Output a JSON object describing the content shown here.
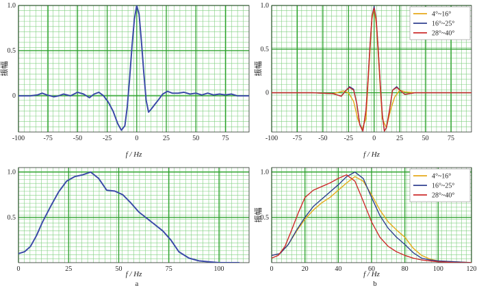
{
  "chart_data": [
    {
      "id": "a-top",
      "type": "line",
      "xlabel": "f / Hz",
      "ylabel": "振幅",
      "xlim": [
        -100,
        95
      ],
      "ylim": [
        -0.4,
        1.0
      ],
      "xticks": [
        -100,
        -75,
        -50,
        -25,
        0,
        25,
        50,
        75
      ],
      "yticks": [
        0,
        0.5,
        1.0
      ],
      "ytick_labels": [
        "0",
        "0.5",
        "1.0"
      ],
      "grid": true,
      "series": [
        {
          "color": "#3b4aa8",
          "x": [
            -100,
            -90,
            -84,
            -80,
            -76,
            -70,
            -66,
            -62,
            -56,
            -50,
            -45,
            -40,
            -36,
            -32,
            -28,
            -24,
            -20,
            -16,
            -13,
            -10,
            -8,
            -6,
            -4,
            -2,
            0,
            2,
            4,
            6,
            8,
            10,
            12,
            15,
            18,
            22,
            26,
            30,
            35,
            40,
            45,
            50,
            55,
            60,
            65,
            70,
            75,
            80,
            85,
            90,
            95
          ],
          "y": [
            0,
            0,
            0.01,
            0.03,
            0.01,
            -0.01,
            0,
            0.02,
            0,
            0.04,
            0.02,
            -0.02,
            0.02,
            0.04,
            0,
            -0.07,
            -0.17,
            -0.31,
            -0.38,
            -0.33,
            -0.12,
            0.2,
            0.55,
            0.85,
            1.0,
            0.9,
            0.6,
            0.25,
            -0.05,
            -0.18,
            -0.15,
            -0.1,
            -0.05,
            0.02,
            0.05,
            0.03,
            0.03,
            0.04,
            0.02,
            0.03,
            0.01,
            0.03,
            0.01,
            0.02,
            0.01,
            0.02,
            0,
            0,
            0
          ]
        }
      ]
    },
    {
      "id": "a-bottom",
      "type": "line",
      "xlabel": "f / Hz",
      "ylabel": "",
      "xlim": [
        0,
        115
      ],
      "ylim": [
        0,
        1.05
      ],
      "xticks": [
        0,
        25,
        50,
        75,
        100
      ],
      "yticks": [
        0.5,
        1.0
      ],
      "ytick_labels": [
        "0.5",
        "1.0"
      ],
      "grid": true,
      "series": [
        {
          "color": "#3b4aa8",
          "x": [
            0,
            3,
            6,
            9,
            12,
            16,
            20,
            24,
            28,
            32,
            36,
            40,
            44,
            48,
            52,
            56,
            60,
            64,
            68,
            72,
            76,
            80,
            85,
            90,
            95,
            100,
            105,
            110
          ],
          "y": [
            0.1,
            0.12,
            0.18,
            0.3,
            0.45,
            0.62,
            0.78,
            0.9,
            0.95,
            0.97,
            1.0,
            0.93,
            0.8,
            0.79,
            0.75,
            0.66,
            0.56,
            0.49,
            0.42,
            0.35,
            0.25,
            0.12,
            0.05,
            0.02,
            0.01,
            0.0,
            0.0,
            0.0
          ]
        }
      ]
    },
    {
      "id": "b-top",
      "type": "line",
      "xlabel": "f / Hz",
      "ylabel": "振幅",
      "xlim": [
        -100,
        95
      ],
      "ylim": [
        -0.45,
        1.0
      ],
      "xticks": [
        -100,
        -75,
        -50,
        -25,
        0,
        25,
        50,
        75
      ],
      "yticks": [
        0,
        0.5,
        1.0
      ],
      "ytick_labels": [
        "0",
        "0.5",
        "1.0"
      ],
      "grid": true,
      "legend": {
        "placement": "top-right"
      },
      "series": [
        {
          "name": "4°~16°",
          "color": "#e6a817",
          "x": [
            -100,
            -60,
            -40,
            -30,
            -25,
            -20,
            -16,
            -12,
            -8,
            -6,
            -4,
            -2,
            0,
            2,
            4,
            6,
            8,
            12,
            16,
            20,
            25,
            30,
            40,
            60,
            95
          ],
          "y": [
            0,
            0,
            -0.01,
            0.02,
            0,
            -0.1,
            -0.3,
            -0.42,
            -0.3,
            0.1,
            0.5,
            0.85,
            0.97,
            0.8,
            0.45,
            0.05,
            -0.3,
            -0.4,
            -0.2,
            -0.05,
            0.03,
            0.01,
            0,
            0,
            0
          ]
        },
        {
          "name": "16°~25°",
          "color": "#2f3f8f",
          "x": [
            -100,
            -60,
            -40,
            -32,
            -28,
            -24,
            -20,
            -17,
            -14,
            -11,
            -8,
            -6,
            -4,
            -2,
            0,
            2,
            4,
            6,
            8,
            10,
            12,
            15,
            18,
            22,
            26,
            30,
            40,
            60,
            95
          ],
          "y": [
            0,
            0,
            -0.01,
            -0.04,
            0.02,
            0.07,
            0.04,
            -0.12,
            -0.36,
            -0.44,
            -0.2,
            0.15,
            0.55,
            0.88,
            0.99,
            0.85,
            0.5,
            0.1,
            -0.25,
            -0.44,
            -0.4,
            -0.2,
            0.03,
            0.07,
            0.02,
            -0.02,
            0,
            0,
            0
          ]
        },
        {
          "name": "28°~40°",
          "color": "#cc2a2a",
          "x": [
            -100,
            -60,
            -40,
            -32,
            -28,
            -24,
            -20,
            -17,
            -14,
            -11,
            -8,
            -6,
            -4,
            -2,
            0,
            2,
            4,
            6,
            8,
            10,
            12,
            15,
            18,
            22,
            26,
            30,
            40,
            60,
            95
          ],
          "y": [
            0,
            0,
            -0.01,
            -0.04,
            0.02,
            0.06,
            0.03,
            -0.12,
            -0.37,
            -0.44,
            -0.2,
            0.15,
            0.55,
            0.88,
            0.97,
            0.85,
            0.5,
            0.1,
            -0.25,
            -0.44,
            -0.4,
            -0.2,
            0.03,
            0.06,
            0.02,
            -0.02,
            0,
            0,
            0
          ]
        }
      ]
    },
    {
      "id": "b-bottom",
      "type": "line",
      "xlabel": "f / Hz",
      "ylabel": "振幅",
      "xlim": [
        0,
        120
      ],
      "ylim": [
        0,
        1.05
      ],
      "xticks": [
        0,
        20,
        40,
        60,
        80,
        100,
        120
      ],
      "yticks": [
        0.5,
        1.0
      ],
      "ytick_labels": [
        "0.5",
        "1.0"
      ],
      "grid": true,
      "legend": {
        "placement": "top-right"
      },
      "series": [
        {
          "name": "4°~16°",
          "color": "#e6a817",
          "x": [
            0,
            5,
            10,
            15,
            20,
            25,
            30,
            35,
            40,
            45,
            50,
            55,
            60,
            65,
            70,
            75,
            80,
            85,
            90,
            95,
            100,
            110,
            120
          ],
          "y": [
            0.08,
            0.1,
            0.2,
            0.35,
            0.48,
            0.58,
            0.66,
            0.72,
            0.8,
            0.88,
            0.95,
            0.9,
            0.75,
            0.58,
            0.45,
            0.36,
            0.28,
            0.16,
            0.08,
            0.04,
            0.02,
            0.01,
            0
          ]
        },
        {
          "name": "16°~25°",
          "color": "#2f3f8f",
          "x": [
            0,
            5,
            10,
            15,
            20,
            25,
            30,
            35,
            40,
            45,
            50,
            55,
            60,
            65,
            70,
            75,
            80,
            85,
            90,
            95,
            100,
            110,
            120
          ],
          "y": [
            0.08,
            0.1,
            0.2,
            0.36,
            0.5,
            0.62,
            0.7,
            0.78,
            0.86,
            0.95,
            1.0,
            0.93,
            0.72,
            0.52,
            0.38,
            0.28,
            0.2,
            0.11,
            0.05,
            0.03,
            0.02,
            0.01,
            0
          ]
        },
        {
          "name": "28°~40°",
          "color": "#cc2a2a",
          "x": [
            0,
            4,
            8,
            12,
            16,
            20,
            25,
            30,
            35,
            40,
            45,
            50,
            55,
            60,
            65,
            70,
            75,
            80,
            85,
            90,
            95,
            100,
            110,
            120
          ],
          "y": [
            0.05,
            0.08,
            0.18,
            0.36,
            0.55,
            0.72,
            0.8,
            0.84,
            0.88,
            0.93,
            0.97,
            0.9,
            0.68,
            0.45,
            0.28,
            0.18,
            0.12,
            0.08,
            0.05,
            0.03,
            0.02,
            0.01,
            0,
            0
          ]
        }
      ]
    }
  ],
  "panel_labels": [
    "a",
    "b"
  ],
  "colors": {
    "grid_major": "#2ca02c",
    "grid_minor": "#7fcf7f"
  }
}
